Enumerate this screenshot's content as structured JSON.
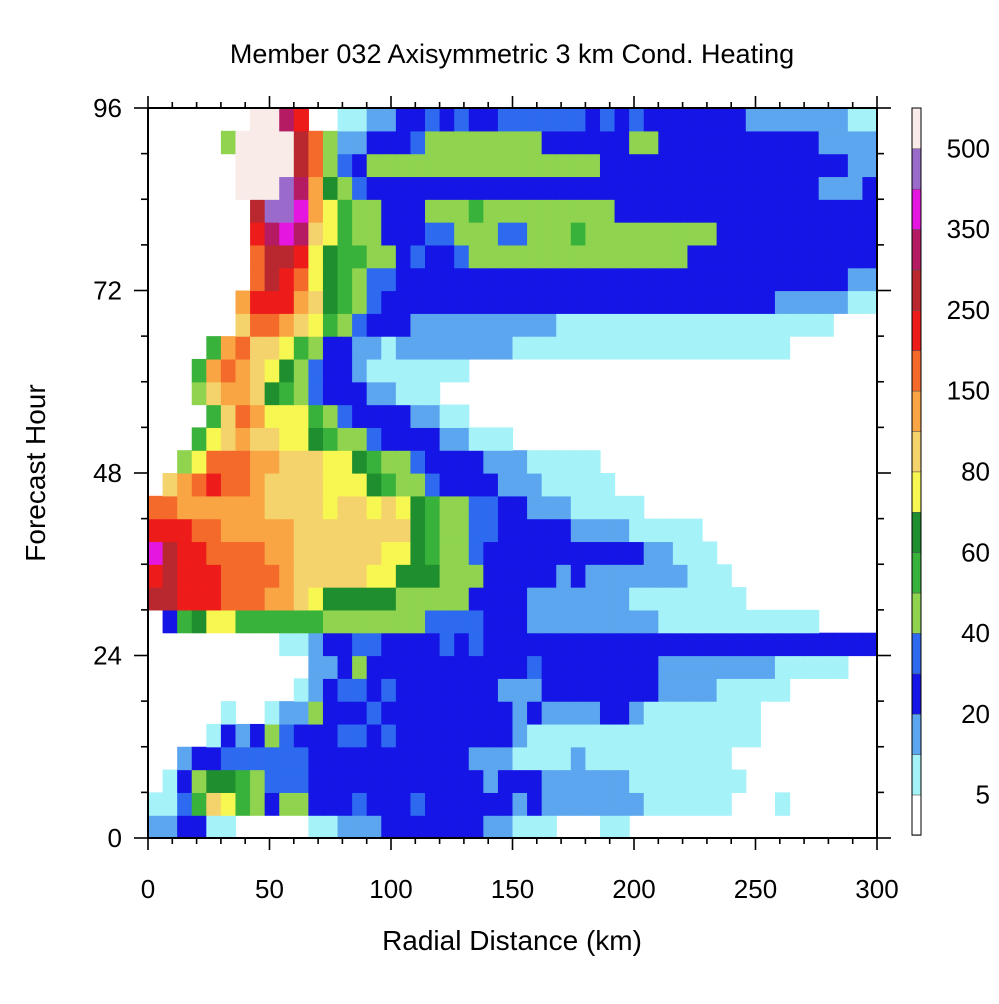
{
  "chart_data": {
    "type": "heatmap",
    "title": "Member 032 Axisymmetric 3 km Cond. Heating",
    "xlabel": "Radial Distance (km)",
    "ylabel": "Forecast Hour",
    "xlim": [
      0,
      300
    ],
    "ylim": [
      0,
      96
    ],
    "x_ticks": [
      0,
      50,
      100,
      150,
      200,
      250,
      300
    ],
    "y_ticks": [
      0,
      24,
      48,
      72,
      96
    ],
    "x_grid": {
      "start": 0,
      "step": 6,
      "count": 50
    },
    "y_grid": {
      "start": 0,
      "step": 3,
      "count": 32
    },
    "colorbar": {
      "levels": [
        5,
        10,
        20,
        30,
        40,
        50,
        60,
        70,
        80,
        100,
        150,
        200,
        250,
        300,
        350,
        400,
        500
      ],
      "labeled_levels": [
        "5",
        "20",
        "40",
        "60",
        "80",
        "150",
        "250",
        "350",
        "500"
      ],
      "colors": [
        "#ffffff",
        "#a5f2f8",
        "#5ca6ef",
        "#1515e6",
        "#2d6af0",
        "#8fd34f",
        "#39b23b",
        "#1e8e2e",
        "#f7f751",
        "#f5d36c",
        "#f9a544",
        "#f46a2a",
        "#ee1b1b",
        "#b8282e",
        "#b51b63",
        "#e516e0",
        "#9b6bcc",
        "#f8ebe8"
      ]
    },
    "rows": [
      [
        2,
        2,
        3,
        3,
        1,
        1,
        0,
        0,
        0,
        0,
        0,
        1,
        1,
        2,
        2,
        2,
        3,
        3,
        3,
        3,
        3,
        3,
        3,
        2,
        2,
        1,
        1,
        1,
        0,
        0,
        0,
        1,
        1,
        0,
        0,
        0,
        0,
        0,
        0,
        0,
        0,
        0,
        0,
        0,
        0,
        0,
        0,
        0,
        0,
        0
      ],
      [
        1,
        1,
        4,
        6,
        9,
        8,
        6,
        5,
        3,
        5,
        5,
        3,
        3,
        3,
        4,
        3,
        3,
        3,
        4,
        3,
        3,
        3,
        3,
        3,
        3,
        2,
        3,
        2,
        2,
        2,
        2,
        2,
        2,
        2,
        1,
        1,
        1,
        1,
        1,
        1,
        0,
        0,
        0,
        1,
        0,
        0,
        0,
        0,
        0,
        0
      ],
      [
        0,
        1,
        3,
        5,
        7,
        7,
        6,
        5,
        4,
        4,
        4,
        3,
        3,
        3,
        3,
        3,
        3,
        3,
        3,
        3,
        3,
        3,
        3,
        2,
        3,
        3,
        3,
        2,
        2,
        2,
        2,
        2,
        2,
        1,
        1,
        1,
        1,
        1,
        1,
        1,
        1,
        0,
        0,
        0,
        0,
        0,
        0,
        0,
        0,
        0
      ],
      [
        0,
        0,
        2,
        3,
        3,
        4,
        4,
        4,
        4,
        4,
        4,
        3,
        3,
        3,
        3,
        3,
        3,
        3,
        3,
        3,
        3,
        3,
        2,
        2,
        2,
        1,
        1,
        1,
        1,
        2,
        1,
        1,
        1,
        1,
        1,
        1,
        1,
        1,
        1,
        1,
        0,
        0,
        0,
        0,
        0,
        0,
        0,
        0,
        0,
        0
      ],
      [
        0,
        0,
        0,
        0,
        1,
        3,
        2,
        3,
        5,
        4,
        3,
        3,
        3,
        4,
        4,
        3,
        4,
        3,
        3,
        3,
        3,
        3,
        3,
        3,
        3,
        2,
        1,
        1,
        1,
        1,
        1,
        1,
        1,
        1,
        1,
        1,
        1,
        1,
        1,
        1,
        1,
        1,
        0,
        0,
        0,
        0,
        0,
        0,
        0,
        0
      ],
      [
        0,
        0,
        0,
        0,
        0,
        1,
        0,
        0,
        1,
        2,
        2,
        5,
        3,
        3,
        3,
        4,
        3,
        3,
        3,
        3,
        3,
        3,
        3,
        3,
        3,
        2,
        3,
        2,
        2,
        2,
        2,
        3,
        3,
        2,
        1,
        1,
        1,
        1,
        1,
        1,
        1,
        1,
        0,
        0,
        0,
        0,
        0,
        0,
        0,
        0
      ],
      [
        0,
        0,
        0,
        0,
        0,
        0,
        0,
        0,
        0,
        0,
        1,
        2,
        3,
        4,
        4,
        3,
        4,
        3,
        3,
        3,
        3,
        3,
        3,
        3,
        2,
        2,
        2,
        3,
        3,
        3,
        3,
        3,
        3,
        3,
        3,
        2,
        2,
        2,
        2,
        1,
        1,
        1,
        1,
        1,
        0,
        0,
        0,
        0,
        0,
        0
      ],
      [
        0,
        0,
        0,
        0,
        0,
        0,
        0,
        0,
        0,
        0,
        0,
        2,
        2,
        3,
        5,
        3,
        3,
        3,
        3,
        3,
        3,
        3,
        3,
        3,
        3,
        3,
        4,
        3,
        3,
        3,
        3,
        3,
        3,
        3,
        3,
        2,
        2,
        2,
        2,
        2,
        2,
        2,
        2,
        1,
        1,
        1,
        1,
        1,
        0,
        0
      ],
      [
        0,
        0,
        0,
        0,
        0,
        0,
        0,
        0,
        0,
        1,
        1,
        2,
        3,
        3,
        4,
        4,
        3,
        3,
        3,
        3,
        4,
        3,
        4,
        3,
        3,
        3,
        3,
        3,
        3,
        3,
        3,
        3,
        3,
        3,
        3,
        3,
        3,
        3,
        3,
        3,
        3,
        3,
        3,
        3,
        3,
        3,
        3,
        3,
        3,
        3
      ],
      [
        0,
        3,
        6,
        7,
        8,
        8,
        6,
        6,
        6,
        6,
        6,
        6,
        5,
        5,
        5,
        5,
        5,
        5,
        5,
        4,
        4,
        4,
        4,
        3,
        3,
        3,
        2,
        2,
        2,
        2,
        2,
        2,
        2,
        2,
        2,
        1,
        1,
        1,
        1,
        1,
        1,
        1,
        1,
        1,
        1,
        1,
        0,
        0,
        0,
        0
      ],
      [
        13,
        13,
        12,
        12,
        12,
        11,
        11,
        11,
        10,
        10,
        9,
        8,
        7,
        7,
        7,
        7,
        7,
        5,
        5,
        5,
        5,
        5,
        3,
        3,
        3,
        3,
        2,
        2,
        2,
        2,
        2,
        2,
        2,
        1,
        1,
        1,
        1,
        1,
        1,
        1,
        1,
        0,
        0,
        0,
        0,
        0,
        0,
        0,
        0,
        0
      ],
      [
        12,
        13,
        12,
        12,
        12,
        11,
        11,
        11,
        11,
        10,
        9,
        9,
        9,
        9,
        9,
        8,
        8,
        7,
        7,
        7,
        5,
        5,
        5,
        3,
        3,
        3,
        3,
        3,
        2,
        3,
        2,
        2,
        2,
        2,
        2,
        2,
        2,
        1,
        1,
        1,
        0,
        0,
        0,
        0,
        0,
        0,
        0,
        0,
        0,
        0
      ],
      [
        15,
        13,
        12,
        12,
        11,
        11,
        11,
        11,
        10,
        10,
        9,
        9,
        9,
        9,
        9,
        9,
        8,
        8,
        7,
        6,
        5,
        5,
        4,
        3,
        3,
        3,
        3,
        3,
        3,
        3,
        3,
        3,
        3,
        3,
        2,
        2,
        1,
        1,
        1,
        0,
        0,
        0,
        0,
        0,
        0,
        0,
        0,
        0,
        0,
        0
      ],
      [
        12,
        12,
        12,
        11,
        11,
        10,
        10,
        10,
        10,
        10,
        9,
        9,
        9,
        9,
        9,
        9,
        9,
        9,
        7,
        6,
        5,
        5,
        4,
        4,
        3,
        3,
        3,
        3,
        3,
        2,
        2,
        2,
        2,
        1,
        1,
        1,
        1,
        1,
        0,
        0,
        0,
        0,
        0,
        0,
        0,
        0,
        0,
        0,
        0,
        0
      ],
      [
        11,
        11,
        10,
        10,
        10,
        10,
        10,
        10,
        9,
        9,
        9,
        9,
        8,
        9,
        9,
        8,
        9,
        8,
        7,
        6,
        5,
        5,
        4,
        4,
        3,
        3,
        2,
        2,
        2,
        1,
        1,
        1,
        1,
        1,
        0,
        0,
        0,
        0,
        0,
        0,
        0,
        0,
        0,
        0,
        0,
        0,
        0,
        0,
        0,
        0
      ],
      [
        0,
        9,
        10,
        11,
        12,
        11,
        11,
        10,
        9,
        9,
        9,
        9,
        8,
        8,
        8,
        7,
        6,
        5,
        5,
        4,
        3,
        3,
        3,
        3,
        2,
        2,
        2,
        1,
        1,
        1,
        1,
        1,
        0,
        0,
        0,
        0,
        0,
        0,
        0,
        0,
        0,
        0,
        0,
        0,
        0,
        0,
        0,
        0,
        0,
        0
      ],
      [
        0,
        0,
        5,
        8,
        11,
        11,
        11,
        10,
        10,
        9,
        9,
        9,
        8,
        8,
        7,
        6,
        5,
        5,
        4,
        3,
        3,
        3,
        3,
        2,
        2,
        2,
        1,
        1,
        1,
        1,
        1,
        0,
        0,
        0,
        0,
        0,
        0,
        0,
        0,
        0,
        0,
        0,
        0,
        0,
        0,
        0,
        0,
        0,
        0,
        0
      ],
      [
        0,
        0,
        0,
        6,
        8,
        9,
        10,
        9,
        9,
        8,
        8,
        7,
        6,
        5,
        5,
        4,
        3,
        3,
        3,
        3,
        2,
        2,
        1,
        1,
        1,
        0,
        0,
        0,
        0,
        0,
        0,
        0,
        0,
        0,
        0,
        0,
        0,
        0,
        0,
        0,
        0,
        0,
        0,
        0,
        0,
        0,
        0,
        0,
        0,
        0
      ],
      [
        0,
        0,
        0,
        0,
        6,
        9,
        11,
        10,
        8,
        8,
        8,
        6,
        5,
        4,
        3,
        3,
        3,
        3,
        2,
        2,
        1,
        1,
        0,
        0,
        0,
        0,
        0,
        0,
        0,
        0,
        0,
        0,
        0,
        0,
        0,
        0,
        0,
        0,
        0,
        0,
        0,
        0,
        0,
        0,
        0,
        0,
        0,
        0,
        0,
        0
      ],
      [
        0,
        0,
        0,
        5,
        9,
        10,
        10,
        9,
        7,
        6,
        5,
        4,
        3,
        3,
        3,
        2,
        2,
        1,
        1,
        1,
        0,
        0,
        0,
        0,
        0,
        0,
        0,
        0,
        0,
        0,
        0,
        0,
        0,
        0,
        0,
        0,
        0,
        0,
        0,
        0,
        0,
        0,
        0,
        0,
        0,
        0,
        0,
        0,
        0,
        0
      ],
      [
        0,
        0,
        0,
        6,
        10,
        11,
        10,
        9,
        8,
        7,
        5,
        4,
        3,
        3,
        2,
        1,
        1,
        1,
        1,
        1,
        1,
        1,
        0,
        0,
        0,
        0,
        0,
        0,
        0,
        0,
        0,
        0,
        0,
        0,
        0,
        0,
        0,
        0,
        0,
        0,
        0,
        0,
        0,
        0,
        0,
        0,
        0,
        0,
        0,
        0
      ],
      [
        0,
        0,
        0,
        0,
        6,
        10,
        11,
        9,
        9,
        8,
        6,
        5,
        3,
        3,
        2,
        2,
        1,
        2,
        2,
        2,
        2,
        2,
        2,
        2,
        2,
        1,
        1,
        1,
        1,
        1,
        1,
        1,
        1,
        1,
        1,
        1,
        1,
        1,
        1,
        1,
        1,
        1,
        1,
        1,
        0,
        0,
        0,
        0,
        0,
        0
      ],
      [
        0,
        0,
        0,
        0,
        0,
        0,
        9,
        11,
        11,
        10,
        9,
        8,
        6,
        5,
        4,
        3,
        3,
        3,
        2,
        2,
        2,
        2,
        2,
        2,
        2,
        2,
        2,
        2,
        1,
        1,
        1,
        1,
        1,
        1,
        1,
        1,
        1,
        1,
        1,
        1,
        1,
        1,
        1,
        1,
        1,
        1,
        1,
        0,
        0,
        0
      ],
      [
        0,
        0,
        0,
        0,
        0,
        0,
        10,
        12,
        12,
        12,
        10,
        9,
        7,
        6,
        5,
        4,
        3,
        3,
        3,
        3,
        3,
        3,
        3,
        3,
        3,
        3,
        3,
        3,
        3,
        3,
        3,
        3,
        3,
        3,
        3,
        3,
        3,
        3,
        3,
        3,
        3,
        3,
        3,
        2,
        2,
        2,
        2,
        2,
        1,
        1
      ],
      [
        0,
        0,
        0,
        0,
        0,
        0,
        0,
        11,
        13,
        12,
        11,
        8,
        7,
        6,
        5,
        4,
        4,
        3,
        3,
        3,
        3,
        3,
        3,
        3,
        3,
        3,
        3,
        3,
        3,
        3,
        3,
        3,
        3,
        3,
        3,
        3,
        3,
        3,
        3,
        3,
        3,
        3,
        3,
        3,
        3,
        3,
        3,
        3,
        2,
        2
      ],
      [
        0,
        0,
        0,
        0,
        0,
        0,
        0,
        11,
        13,
        13,
        12,
        8,
        7,
        6,
        6,
        5,
        5,
        3,
        4,
        3,
        3,
        4,
        5,
        5,
        5,
        5,
        5,
        5,
        5,
        5,
        5,
        5,
        5,
        5,
        5,
        5,
        5,
        3,
        3,
        3,
        3,
        3,
        3,
        3,
        3,
        3,
        3,
        3,
        3,
        3
      ],
      [
        0,
        0,
        0,
        0,
        0,
        0,
        0,
        12,
        14,
        15,
        14,
        9,
        8,
        6,
        5,
        5,
        3,
        3,
        3,
        4,
        4,
        5,
        5,
        5,
        4,
        4,
        5,
        5,
        5,
        6,
        5,
        5,
        5,
        5,
        5,
        5,
        5,
        5,
        5,
        3,
        3,
        3,
        3,
        3,
        3,
        3,
        3,
        3,
        3,
        3
      ],
      [
        0,
        0,
        0,
        0,
        0,
        0,
        0,
        13,
        16,
        16,
        15,
        10,
        8,
        6,
        5,
        5,
        3,
        3,
        3,
        5,
        5,
        5,
        6,
        5,
        5,
        5,
        5,
        5,
        5,
        5,
        5,
        5,
        3,
        3,
        3,
        3,
        3,
        3,
        3,
        3,
        3,
        3,
        3,
        3,
        3,
        3,
        3,
        3,
        3,
        3
      ],
      [
        0,
        0,
        0,
        0,
        0,
        0,
        17,
        17,
        17,
        16,
        14,
        10,
        7,
        5,
        4,
        3,
        3,
        3,
        3,
        3,
        3,
        3,
        3,
        3,
        3,
        3,
        3,
        3,
        3,
        3,
        3,
        3,
        3,
        3,
        3,
        3,
        3,
        3,
        3,
        3,
        3,
        3,
        3,
        3,
        3,
        3,
        2,
        2,
        2,
        3
      ],
      [
        0,
        0,
        0,
        0,
        0,
        0,
        17,
        17,
        17,
        17,
        13,
        11,
        5,
        4,
        3,
        5,
        5,
        5,
        5,
        5,
        5,
        5,
        5,
        5,
        5,
        5,
        5,
        5,
        5,
        5,
        5,
        3,
        3,
        3,
        3,
        3,
        3,
        3,
        3,
        3,
        3,
        3,
        3,
        3,
        3,
        3,
        3,
        3,
        2,
        2
      ],
      [
        0,
        0,
        0,
        0,
        0,
        5,
        17,
        17,
        17,
        17,
        13,
        11,
        5,
        2,
        2,
        3,
        3,
        3,
        4,
        5,
        5,
        5,
        5,
        5,
        5,
        5,
        5,
        3,
        3,
        3,
        3,
        3,
        3,
        5,
        5,
        3,
        3,
        3,
        3,
        3,
        3,
        3,
        3,
        3,
        3,
        3,
        2,
        2,
        2,
        2
      ],
      [
        0,
        0,
        0,
        0,
        0,
        0,
        0,
        17,
        17,
        14,
        12,
        0,
        0,
        1,
        1,
        2,
        2,
        3,
        3,
        4,
        3,
        4,
        3,
        3,
        4,
        4,
        4,
        4,
        4,
        4,
        3,
        4,
        3,
        4,
        3,
        3,
        3,
        3,
        3,
        3,
        3,
        2,
        2,
        2,
        2,
        2,
        2,
        2,
        1,
        1
      ]
    ]
  }
}
